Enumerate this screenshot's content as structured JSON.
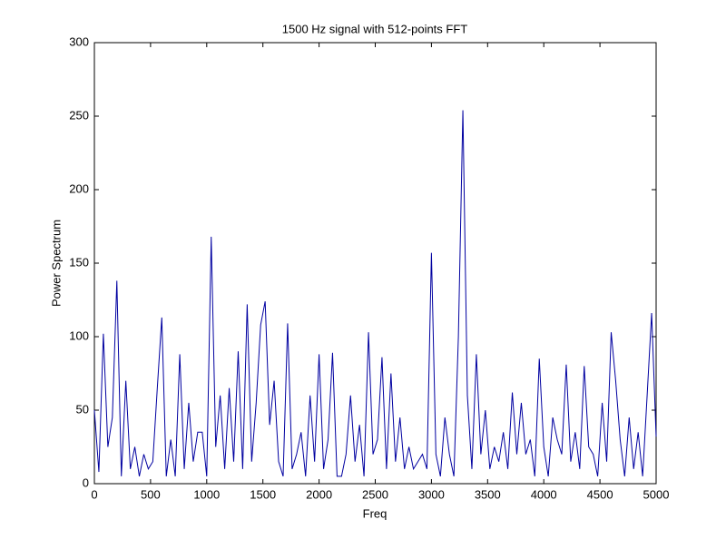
{
  "chart_data": {
    "type": "line",
    "title": "1500 Hz signal with 512-points FFT",
    "x_label": "Freq",
    "y_label": "Power Spectrum",
    "xlim": [
      0,
      5000
    ],
    "ylim": [
      0,
      300
    ],
    "xticks": [
      0,
      500,
      1000,
      1500,
      2000,
      2500,
      3000,
      3500,
      4000,
      4500,
      5000
    ],
    "yticks": [
      0,
      50,
      100,
      150,
      200,
      250,
      300
    ],
    "grid": false,
    "series": [
      {
        "color": "#0000a0",
        "x": [
          0,
          40,
          80,
          120,
          160,
          200,
          240,
          280,
          320,
          360,
          400,
          440,
          480,
          520,
          560,
          600,
          640,
          680,
          720,
          760,
          800,
          840,
          880,
          920,
          960,
          1000,
          1040,
          1080,
          1120,
          1160,
          1200,
          1240,
          1280,
          1320,
          1360,
          1400,
          1440,
          1480,
          1520,
          1560,
          1600,
          1640,
          1680,
          1720,
          1760,
          1800,
          1840,
          1880,
          1920,
          1960,
          2000,
          2040,
          2080,
          2120,
          2160,
          2200,
          2240,
          2280,
          2320,
          2360,
          2400,
          2440,
          2480,
          2520,
          2560,
          2600,
          2640,
          2680,
          2720,
          2760,
          2800,
          2840,
          2880,
          2920,
          2960,
          3000,
          3040,
          3080,
          3120,
          3160,
          3200,
          3240,
          3280,
          3320,
          3360,
          3400,
          3440,
          3480,
          3520,
          3560,
          3600,
          3640,
          3680,
          3720,
          3760,
          3800,
          3840,
          3880,
          3920,
          3960,
          4000,
          4040,
          4080,
          4120,
          4160,
          4200,
          4240,
          4280,
          4320,
          4360,
          4400,
          4440,
          4480,
          4520,
          4560,
          4600,
          4640,
          4680,
          4720,
          4760,
          4800,
          4840,
          4880,
          4920,
          4960,
          5000
        ],
        "values": [
          50,
          8,
          102,
          25,
          45,
          138,
          5,
          70,
          10,
          25,
          5,
          20,
          10,
          15,
          65,
          113,
          5,
          30,
          5,
          88,
          10,
          55,
          15,
          35,
          35,
          5,
          168,
          25,
          60,
          10,
          65,
          15,
          90,
          10,
          122,
          15,
          55,
          108,
          124,
          40,
          70,
          15,
          5,
          109,
          10,
          20,
          35,
          5,
          60,
          15,
          88,
          10,
          30,
          89,
          5,
          5,
          20,
          60,
          15,
          40,
          5,
          103,
          20,
          30,
          86,
          10,
          75,
          15,
          45,
          10,
          25,
          10,
          15,
          20,
          10,
          157,
          20,
          5,
          45,
          20,
          5,
          100,
          254,
          60,
          10,
          88,
          20,
          50,
          10,
          25,
          15,
          35,
          10,
          62,
          20,
          55,
          20,
          30,
          5,
          85,
          25,
          5,
          45,
          30,
          20,
          81,
          15,
          35,
          10,
          80,
          25,
          20,
          5,
          55,
          15,
          103,
          70,
          30,
          5,
          45,
          10,
          35,
          5,
          60,
          116,
          32
        ]
      }
    ]
  }
}
